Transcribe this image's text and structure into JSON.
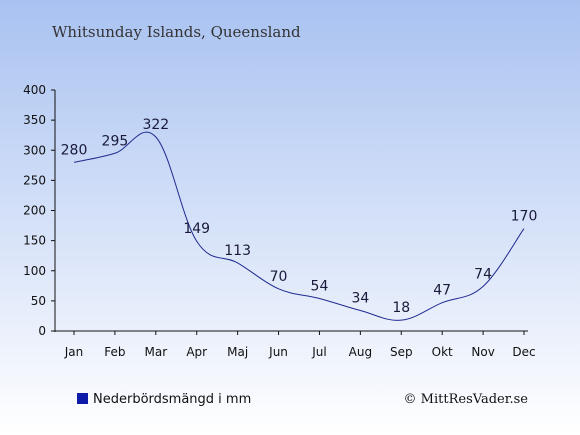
{
  "header": {
    "title": "Whitsunday Islands, Queensland"
  },
  "legend": {
    "label": "Nederbördsmängd i mm",
    "color": "#0d1ba8",
    "placement": "bottom-left"
  },
  "credit": {
    "text": "© MittResVader.se"
  },
  "colors": {
    "bg_top": "#a9c2f1",
    "bg_bottom": "#ffffff",
    "line": "#1f2a8f",
    "axis": "#111111"
  },
  "chart_data": {
    "type": "line",
    "title": "Whitsunday Islands, Queensland",
    "xlabel": "",
    "ylabel": "",
    "categories": [
      "Jan",
      "Feb",
      "Mar",
      "Apr",
      "Maj",
      "Jun",
      "Jul",
      "Aug",
      "Sep",
      "Okt",
      "Nov",
      "Dec"
    ],
    "series": [
      {
        "name": "Nederbördsmängd i mm",
        "values": [
          280,
          295,
          322,
          149,
          113,
          70,
          54,
          34,
          18,
          47,
          74,
          170
        ]
      }
    ],
    "ylim": [
      0,
      400
    ],
    "yticks": [
      0,
      50,
      100,
      150,
      200,
      250,
      300,
      350,
      400
    ],
    "grid": false,
    "legend": "bottom-left"
  }
}
